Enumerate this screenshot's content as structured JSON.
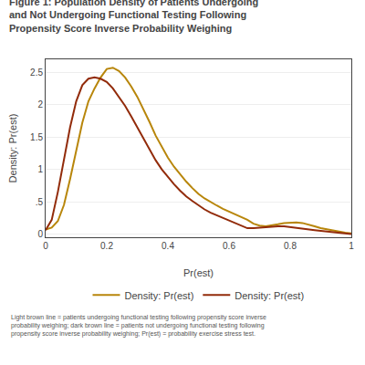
{
  "chart_data": {
    "type": "line",
    "title": "Figure 1: Population Density of Patients Undergoing\nand Not Undergoing Functional Testing Following\nPropensity Score Inverse Probability Weighing",
    "xlabel": "Pr(est)",
    "ylabel": "Density: Pr(est)",
    "x": [
      0.0,
      0.02,
      0.04,
      0.06,
      0.08,
      0.1,
      0.12,
      0.14,
      0.16,
      0.18,
      0.2,
      0.22,
      0.24,
      0.26,
      0.28,
      0.3,
      0.32,
      0.34,
      0.36,
      0.38,
      0.4,
      0.42,
      0.44,
      0.46,
      0.48,
      0.5,
      0.52,
      0.54,
      0.56,
      0.58,
      0.6,
      0.62,
      0.64,
      0.66,
      0.68,
      0.7,
      0.72,
      0.74,
      0.76,
      0.78,
      0.8,
      0.82,
      0.84,
      0.86,
      0.88,
      0.9,
      0.92,
      0.94,
      0.96,
      0.98,
      1.0
    ],
    "series": [
      {
        "name": "Density: Pr(est)",
        "color": "#B8860B",
        "values": [
          0.07,
          0.1,
          0.2,
          0.45,
          0.85,
          1.3,
          1.72,
          2.05,
          2.25,
          2.42,
          2.55,
          2.57,
          2.52,
          2.42,
          2.28,
          2.12,
          1.93,
          1.73,
          1.52,
          1.35,
          1.18,
          1.04,
          0.92,
          0.81,
          0.71,
          0.62,
          0.55,
          0.49,
          0.44,
          0.39,
          0.35,
          0.31,
          0.27,
          0.22,
          0.16,
          0.13,
          0.12,
          0.13,
          0.15,
          0.17,
          0.18,
          0.18,
          0.17,
          0.15,
          0.12,
          0.09,
          0.07,
          0.05,
          0.03,
          0.02,
          0.01
        ]
      },
      {
        "name": "Density: Pr(est)",
        "color": "#922B0A",
        "values": [
          0.06,
          0.22,
          0.65,
          1.15,
          1.65,
          2.05,
          2.3,
          2.4,
          2.42,
          2.4,
          2.35,
          2.25,
          2.12,
          1.98,
          1.82,
          1.65,
          1.48,
          1.3,
          1.14,
          1.0,
          0.88,
          0.77,
          0.67,
          0.58,
          0.51,
          0.44,
          0.38,
          0.33,
          0.29,
          0.25,
          0.21,
          0.16,
          0.12,
          0.09,
          0.09,
          0.1,
          0.11,
          0.12,
          0.12,
          0.12,
          0.11,
          0.1,
          0.09,
          0.07,
          0.06,
          0.05,
          0.04,
          0.03,
          0.02,
          0.01,
          0.0
        ]
      }
    ],
    "xlim": [
      0,
      1
    ],
    "ylim": [
      -0.05,
      2.7
    ],
    "xticks": [
      0,
      0.2,
      0.4,
      0.6,
      0.8,
      1
    ],
    "yticks": [
      0,
      {
        "value": 0.5,
        "label": ".5"
      },
      1,
      1.5,
      2,
      2.5
    ],
    "grid": "y",
    "legend": "bottom",
    "annotations": [
      {
        "text": "Light brown line = patients undergoing functional testing following propensity score inverse\nprobability weighing; dark brown line = patients not undergoing functional testing following\npropensity score inverse probability weighing; Pr(est) = probability exercise stress test."
      }
    ]
  }
}
